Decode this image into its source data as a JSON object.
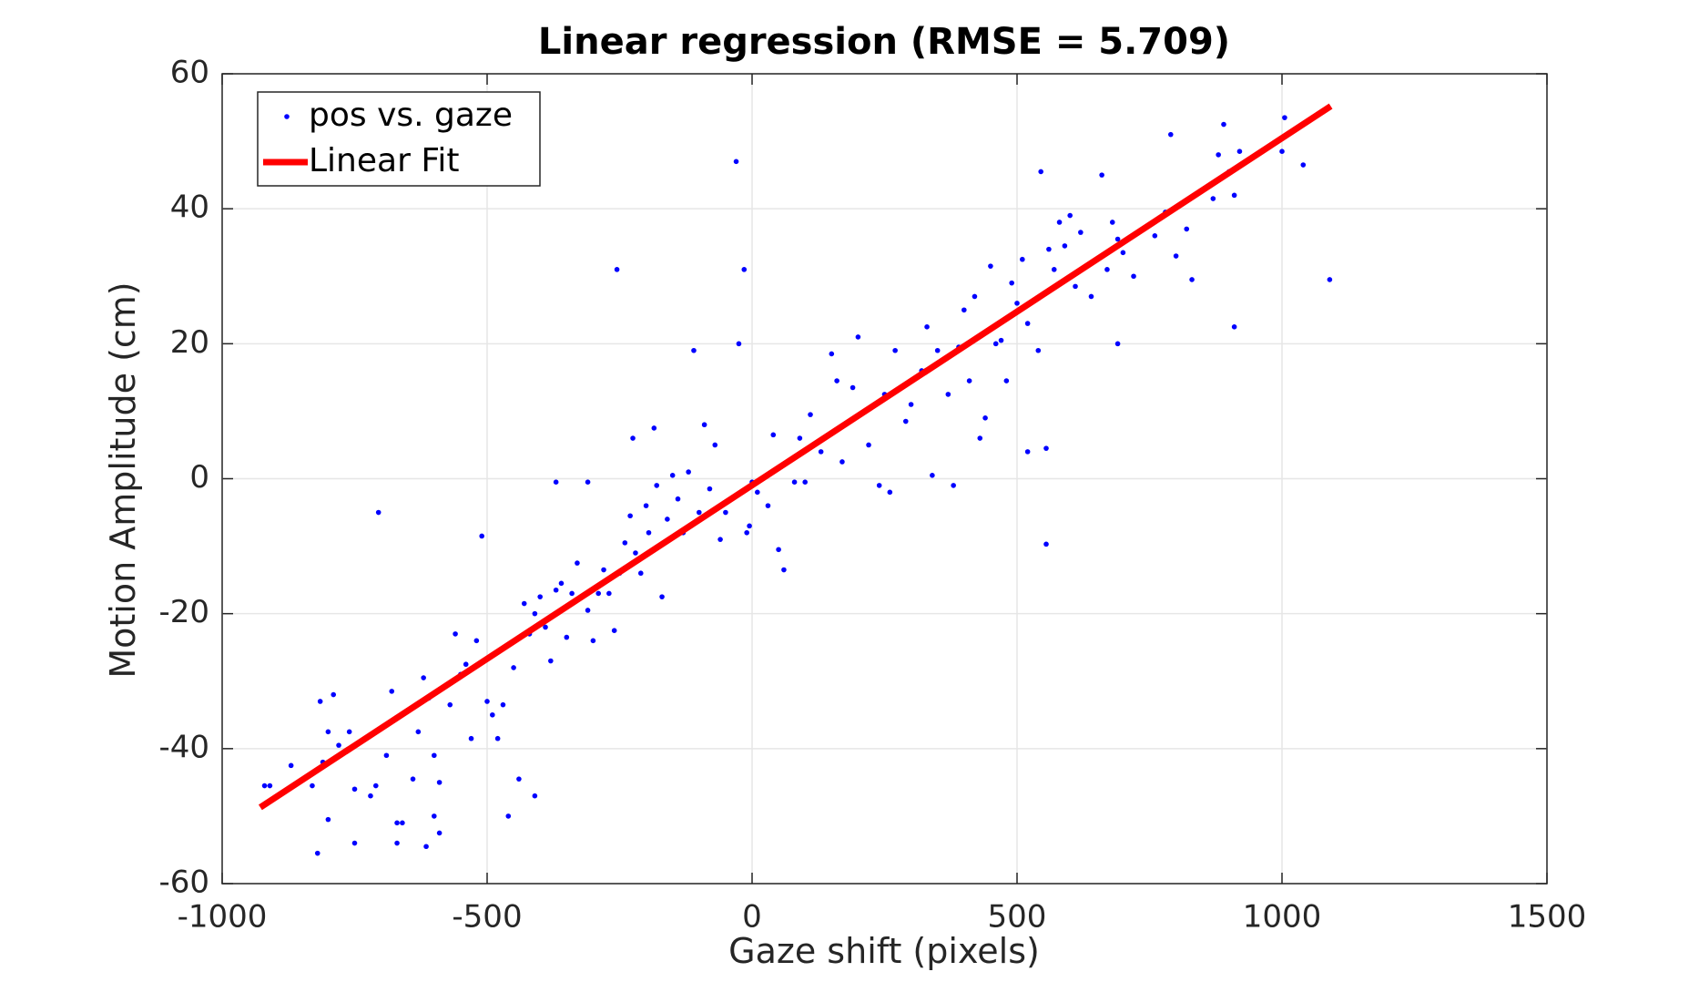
{
  "chart_data": {
    "type": "scatter",
    "title": "Linear regression (RMSE = 5.709)",
    "xlabel": "Gaze shift (pixels)",
    "ylabel": "Motion Amplitude (cm)",
    "xlim": [
      -1000,
      1500
    ],
    "ylim": [
      -60,
      60
    ],
    "xticks": [
      -1000,
      -500,
      0,
      500,
      1000,
      1500
    ],
    "yticks": [
      -60,
      -40,
      -20,
      0,
      20,
      40,
      60
    ],
    "grid": true,
    "legend": "upper-left",
    "series": [
      {
        "name": "pos vs. gaze",
        "type": "scatter",
        "color": "#0000ff",
        "x": [
          -705,
          -255,
          -30,
          -15,
          -510,
          -370,
          -310,
          1090,
          910,
          555,
          520,
          555,
          690,
          -460,
          -410,
          -440,
          -820,
          -815,
          -790,
          -920,
          -910,
          -870,
          -830,
          -810,
          -800,
          -800,
          -780,
          -760,
          -750,
          -750,
          -720,
          -710,
          -690,
          -680,
          -670,
          -670,
          -660,
          -640,
          -630,
          -620,
          -615,
          -610,
          -600,
          -600,
          -590,
          -590,
          -570,
          -560,
          -550,
          -540,
          -530,
          -520,
          -500,
          -490,
          -480,
          -470,
          -450,
          -430,
          -420,
          -410,
          -400,
          -390,
          -380,
          -370,
          -360,
          -350,
          -340,
          -330,
          -310,
          -300,
          -290,
          -280,
          -270,
          -260,
          -250,
          -240,
          -230,
          -225,
          -220,
          -210,
          -200,
          -195,
          -185,
          -180,
          -170,
          -160,
          -150,
          -140,
          -130,
          -120,
          -110,
          -100,
          -90,
          -80,
          -70,
          -60,
          -50,
          -40,
          -25,
          -10,
          -5,
          0,
          10,
          30,
          40,
          50,
          60,
          80,
          90,
          100,
          110,
          130,
          150,
          160,
          170,
          190,
          200,
          220,
          240,
          250,
          260,
          270,
          290,
          300,
          320,
          330,
          340,
          350,
          370,
          380,
          390,
          400,
          410,
          420,
          430,
          440,
          450,
          460,
          470,
          480,
          490,
          500,
          510,
          520,
          540,
          545,
          560,
          570,
          580,
          590,
          600,
          610,
          620,
          640,
          660,
          670,
          680,
          690,
          700,
          720,
          740,
          760,
          780,
          790,
          800,
          820,
          830,
          870,
          880,
          890,
          900,
          910,
          920,
          1000,
          1005,
          1040
        ],
        "y": [
          -5,
          31,
          47,
          31,
          -8.5,
          -0.5,
          -0.5,
          29.5,
          22.5,
          -9.7,
          4,
          4.5,
          20,
          -50,
          -47,
          -44.5,
          -55.5,
          -33,
          -32,
          -45.5,
          -45.5,
          -42.5,
          -45.5,
          -42,
          -37.5,
          -50.5,
          -39.5,
          -37.5,
          -54,
          -46,
          -47,
          -45.5,
          -41,
          -31.5,
          -51,
          -54,
          -51,
          -44.5,
          -37.5,
          -29.5,
          -54.5,
          -32.5,
          -50,
          -41,
          -52.5,
          -45,
          -33.5,
          -23,
          -29,
          -27.5,
          -38.5,
          -24,
          -33,
          -35,
          -38.5,
          -33.5,
          -28,
          -18.5,
          -23,
          -20,
          -17.5,
          -22,
          -27,
          -16.5,
          -15.5,
          -23.5,
          -17,
          -12.5,
          -19.5,
          -24,
          -17,
          -13.5,
          -17,
          -22.5,
          -14,
          -9.5,
          -5.5,
          6,
          -11,
          -14,
          -4,
          -8,
          7.5,
          -1,
          -17.5,
          -6,
          0.5,
          -3,
          -8,
          1,
          19,
          -5,
          8,
          -1.5,
          5,
          -9,
          -5,
          -3,
          20,
          -8,
          -7,
          -0.5,
          -2,
          -4,
          6.5,
          -10.5,
          -13.5,
          -0.5,
          6,
          -0.5,
          9.5,
          4,
          18.5,
          14.5,
          2.5,
          13.5,
          21,
          5,
          -1,
          12.5,
          -2,
          19,
          8.5,
          11,
          16,
          22.5,
          0.5,
          19,
          12.5,
          -1,
          19.5,
          25,
          14.5,
          27,
          6,
          9,
          31.5,
          20,
          20.5,
          14.5,
          29,
          26,
          32.5,
          23,
          19,
          45.5,
          34,
          31,
          38,
          34.5,
          39,
          28.5,
          36.5,
          27,
          45,
          31,
          38,
          35.5,
          33.5,
          30,
          37,
          36,
          39.5,
          51,
          33,
          37,
          29.5,
          41.5,
          48,
          52.5,
          45.5,
          42,
          48.5,
          48.5,
          53.5,
          46.5
        ]
      },
      {
        "name": "Linear Fit",
        "type": "line",
        "color": "#ff0000",
        "x": [
          -928,
          1092
        ],
        "y": [
          -48.7,
          55.2
        ]
      }
    ]
  }
}
